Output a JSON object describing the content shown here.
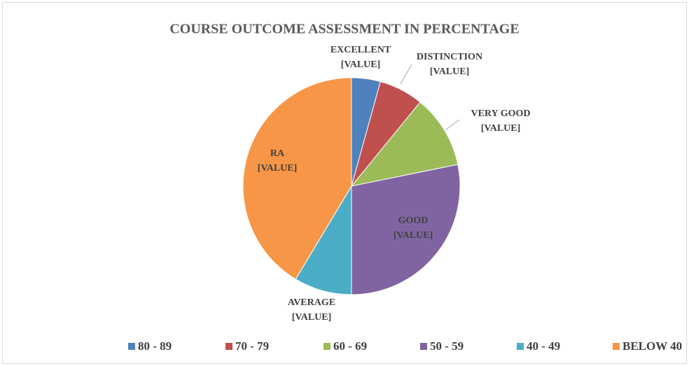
{
  "chart_data": {
    "type": "pie",
    "title": "COURSE OUTCOME ASSESSMENT IN PERCENTAGE",
    "categories": [
      "80 - 89",
      "70 - 79",
      "60 - 69",
      "50 - 59",
      "40 - 49",
      "BELOW 40"
    ],
    "slice_names": [
      "EXCELLENT",
      "DISTINCTION",
      "VERY GOOD",
      "GOOD",
      "AVERAGE",
      "RA"
    ],
    "values": [
      4.3,
      6.6,
      10.9,
      28.2,
      8.6,
      41.4
    ],
    "value_labels": [
      "[VALUE]",
      "[VALUE]",
      "[VALUE]",
      "[VALUE]",
      "[VALUE]",
      "[VALUE]"
    ],
    "colors": [
      "#4f81bd",
      "#c0504d",
      "#9bbb59",
      "#8064a2",
      "#4bacc6",
      "#f79646"
    ],
    "legend": "bottom"
  }
}
